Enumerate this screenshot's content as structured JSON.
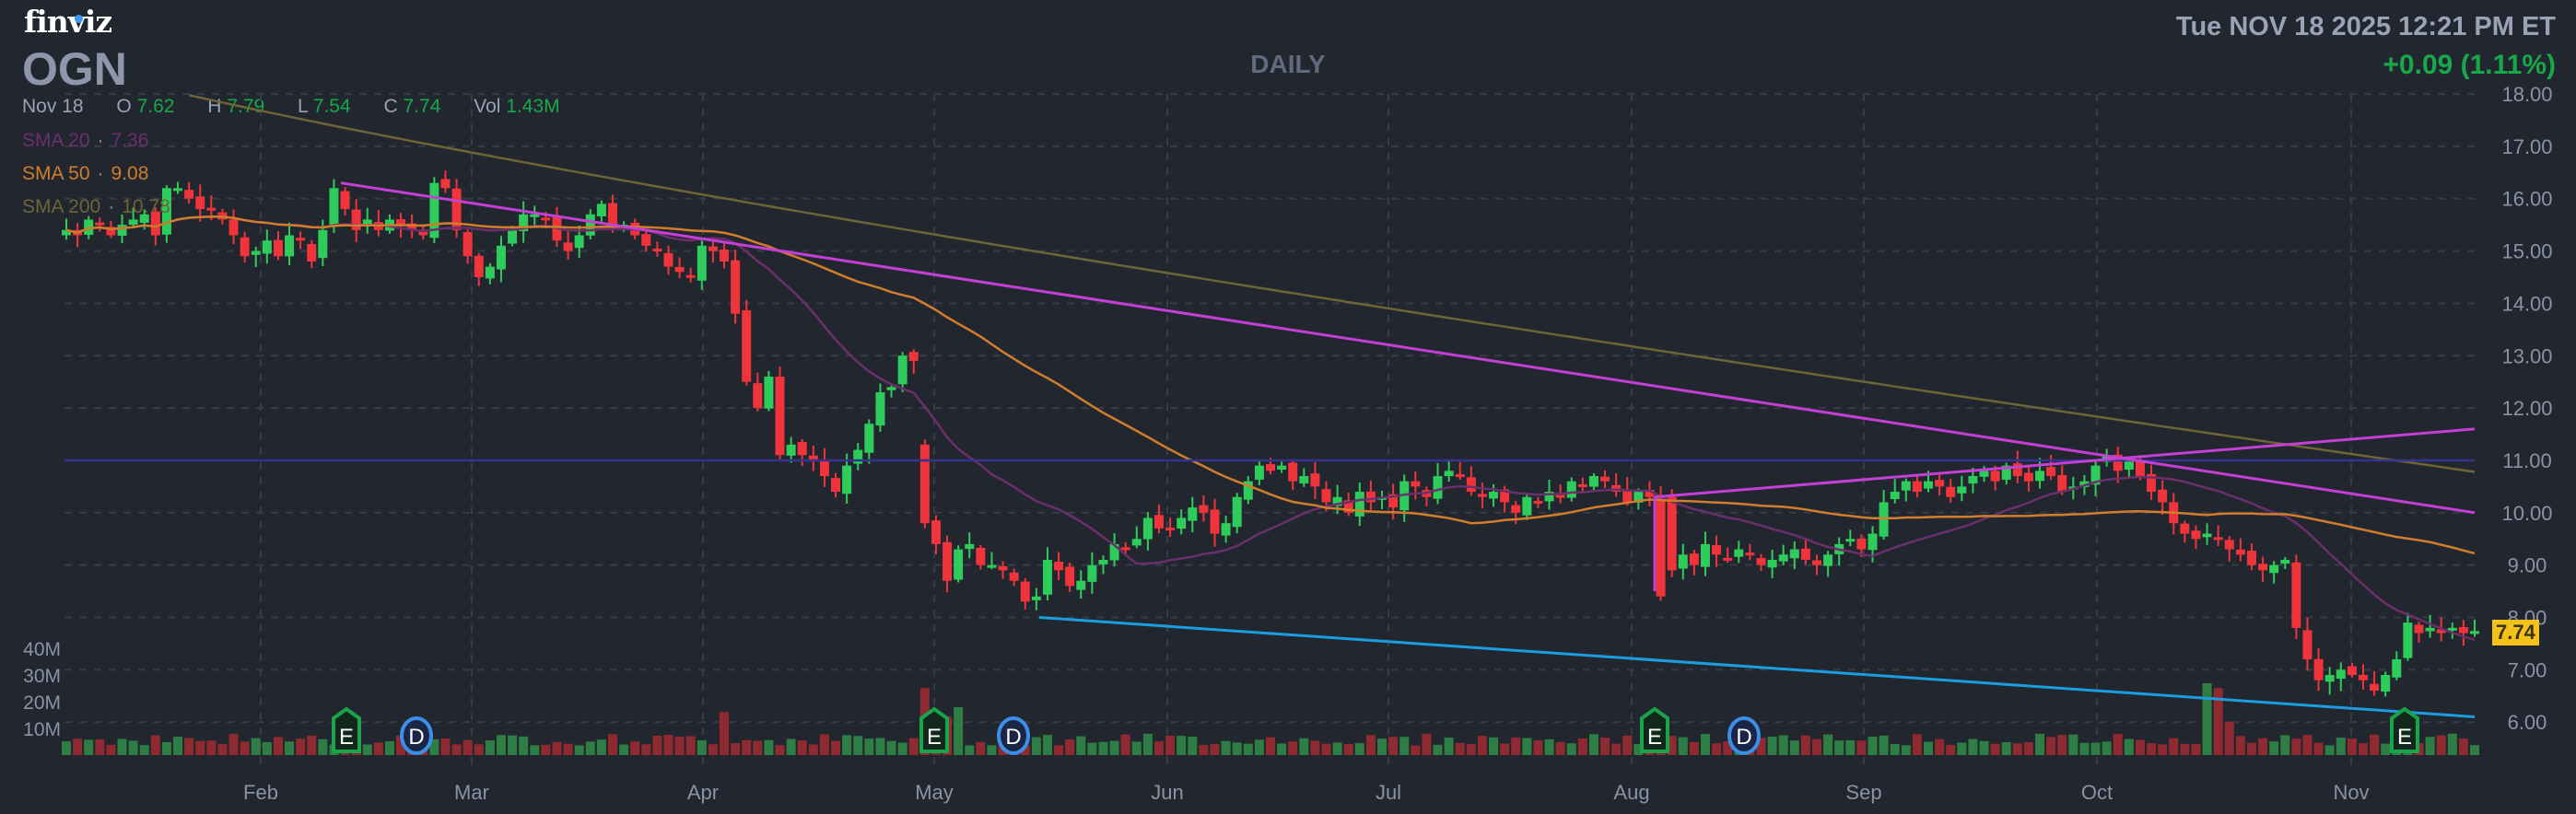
{
  "header": {
    "logo": "finviz",
    "ticker": "OGN",
    "period": "DAILY",
    "datetime": "Tue NOV 18 2025 12:21 PM ET",
    "change": "+0.09 (1.11%)"
  },
  "ohlc": {
    "date": "Nov 18",
    "open_label": "O",
    "open": "7.62",
    "high_label": "H",
    "high": "7.79",
    "low_label": "L",
    "low": "7.54",
    "close_label": "C",
    "close": "7.74",
    "vol_label": "Vol",
    "volume": "1.43M"
  },
  "indicators": [
    {
      "label": "SMA 20",
      "value": "7.36",
      "color": "#6b2f6b"
    },
    {
      "label": "SMA 50",
      "value": "9.08",
      "color": "#d27d2c"
    },
    {
      "label": "SMA 200",
      "value": "10.78",
      "color": "#6e6436"
    }
  ],
  "last_price_tag": "7.74",
  "colors": {
    "background": "#22262f",
    "up": "#2ecc5a",
    "down": "#f0343c",
    "vol_up": "#2e7d45",
    "vol_down": "#8e2a30",
    "trendline": "#c43fd4",
    "support_line": "#1b9ee0",
    "horizontal_line": "#35338f",
    "positive_text": "#18a84a",
    "price_tag": "#f2c21b"
  },
  "events": [
    {
      "type": "earnings",
      "label": "E",
      "date_approx": "Feb 13"
    },
    {
      "type": "dividend",
      "label": "D",
      "date_approx": "Feb 24"
    },
    {
      "type": "earnings",
      "label": "E",
      "date_approx": "May 1"
    },
    {
      "type": "dividend",
      "label": "D",
      "date_approx": "May 12"
    },
    {
      "type": "earnings",
      "label": "E",
      "date_approx": "Aug 5"
    },
    {
      "type": "dividend",
      "label": "D",
      "date_approx": "Aug 18"
    },
    {
      "type": "earnings",
      "label": "E",
      "date_approx": "Nov 6"
    }
  ],
  "chart_data": {
    "type": "candlestick",
    "title": "OGN DAILY",
    "x_tick_labels": [
      "Feb",
      "Mar",
      "Apr",
      "May",
      "Jun",
      "Jul",
      "Aug",
      "Sep",
      "Oct",
      "Nov"
    ],
    "y_tick_labels": [
      "18.00",
      "17.00",
      "16.00",
      "15.00",
      "14.00",
      "13.00",
      "12.00",
      "11.00",
      "10.00",
      "9.00",
      "8.00",
      "7.00",
      "6.00"
    ],
    "ylim": [
      5.5,
      18
    ],
    "volume_tick_labels": [
      "40M",
      "30M",
      "20M",
      "10M"
    ],
    "grid": true,
    "close_series_approx": [
      15.4,
      15.3,
      15.6,
      15.5,
      15.3,
      15.5,
      15.6,
      15.7,
      15.3,
      16.2,
      16.2,
      16.0,
      15.8,
      15.8,
      15.6,
      15.3,
      14.9,
      15.0,
      15.2,
      14.9,
      15.3,
      15.2,
      14.8,
      15.4,
      16.2,
      15.8,
      15.4,
      15.6,
      15.4,
      15.6,
      15.5,
      15.4,
      15.3,
      16.3,
      16.2,
      15.4,
      14.9,
      14.5,
      14.7,
      15.1,
      15.4,
      15.7,
      15.7,
      15.6,
      15.2,
      15.0,
      15.3,
      15.7,
      15.9,
      15.5,
      15.5,
      15.3,
      15.1,
      15.0,
      14.7,
      14.6,
      14.5,
      15.1,
      15.0,
      14.8,
      13.8,
      12.5,
      12.0,
      12.6,
      11.1,
      11.3,
      11.1,
      11.0,
      10.7,
      10.4,
      10.9,
      11.2,
      11.7,
      12.3,
      12.4,
      13.0,
      12.9,
      9.8,
      9.4,
      8.7,
      9.3,
      9.4,
      9.0,
      9.0,
      8.9,
      8.7,
      8.3,
      8.4,
      9.1,
      8.9,
      8.6,
      8.7,
      9.0,
      9.1,
      9.4,
      9.3,
      9.5,
      9.9,
      9.7,
      9.7,
      9.9,
      10.1,
      10.0,
      9.6,
      9.8,
      10.3,
      10.6,
      10.9,
      10.8,
      10.9,
      10.6,
      10.7,
      10.5,
      10.2,
      10.3,
      10.0,
      10.4,
      10.2,
      10.3,
      10.1,
      10.6,
      10.5,
      10.3,
      10.7,
      10.8,
      10.7,
      10.4,
      10.3,
      10.4,
      10.2,
      10.0,
      10.3,
      10.2,
      10.4,
      10.3,
      10.6,
      10.5,
      10.7,
      10.6,
      10.4,
      10.2,
      10.4,
      10.3,
      8.4,
      8.9,
      9.2,
      9.0,
      9.4,
      9.2,
      9.1,
      9.3,
      9.2,
      9.0,
      9.1,
      9.2,
      9.3,
      9.1,
      9.0,
      9.2,
      9.4,
      9.5,
      9.3,
      9.6,
      10.2,
      10.4,
      10.6,
      10.4,
      10.6,
      10.5,
      10.3,
      10.5,
      10.7,
      10.8,
      10.6,
      10.9,
      10.7,
      10.6,
      10.8,
      10.7,
      10.4,
      10.5,
      10.6,
      10.9,
      11.1,
      10.8,
      11.0,
      10.7,
      10.4,
      10.2,
      9.8,
      9.6,
      9.5,
      9.6,
      9.5,
      9.3,
      9.2,
      9.0,
      8.9,
      9.0,
      9.1,
      7.8,
      7.2,
      6.8,
      6.9,
      7.0,
      6.9,
      6.8,
      6.6,
      6.9,
      7.2,
      7.9,
      7.7,
      7.8,
      7.7,
      7.8,
      7.7,
      7.74
    ],
    "sma20_end": 7.36,
    "sma50_end": 9.08,
    "sma200_end": 10.78,
    "trendlines": [
      {
        "name": "descending resistance",
        "from": {
          "x_approx": "Feb 13",
          "price": 16.3
        },
        "to": {
          "x_approx": "Nov 18",
          "price": 10.0
        }
      },
      {
        "name": "ascending line",
        "from": {
          "x_approx": "Aug 1",
          "price": 10.3
        },
        "to": {
          "x_approx": "Nov 18",
          "price": 11.6
        }
      },
      {
        "name": "support line",
        "from": {
          "x_approx": "May 15",
          "price": 8.0
        },
        "to": {
          "x_approx": "Nov 18",
          "price": 6.1
        }
      },
      {
        "name": "horizontal level",
        "price": 11.0
      }
    ],
    "last_close": 7.74
  }
}
